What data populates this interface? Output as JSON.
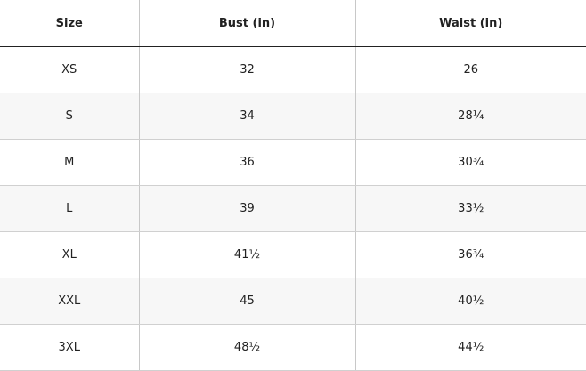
{
  "table": {
    "headers": [
      "Size",
      "Bust (in)",
      "Waist (in)"
    ],
    "rows": [
      [
        "XS",
        "32",
        "26"
      ],
      [
        "S",
        "34",
        "28¼"
      ],
      [
        "M",
        "36",
        "30¾"
      ],
      [
        "L",
        "39",
        "33½"
      ],
      [
        "XL",
        "41½",
        "36¾"
      ],
      [
        "XXL",
        "45",
        "40½"
      ],
      [
        "3XL",
        "48½",
        "44½"
      ]
    ]
  }
}
